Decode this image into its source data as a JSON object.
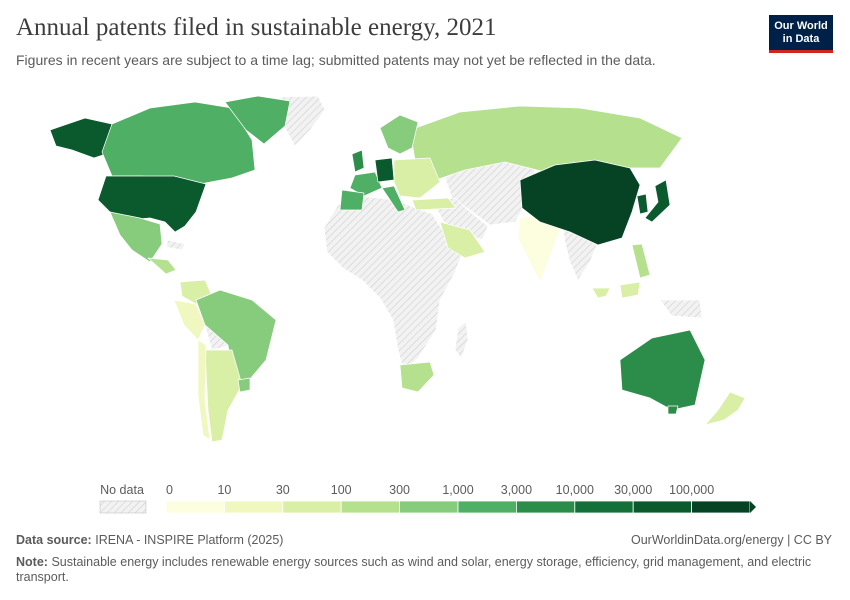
{
  "header": {
    "title": "Annual patents filed in sustainable energy, 2021",
    "subtitle": "Figures in recent years are subject to a time lag; submitted patents may not yet be reflected in the data."
  },
  "logo": {
    "line1": "Our World",
    "line2": "in Data"
  },
  "legend": {
    "no_data_label": "No data",
    "bins": [
      {
        "label": "0",
        "color": "#fdfde0"
      },
      {
        "label": "10",
        "color": "#f0f8c0"
      },
      {
        "label": "30",
        "color": "#d9efa6"
      },
      {
        "label": "100",
        "color": "#b5e08e"
      },
      {
        "label": "300",
        "color": "#86cc7c"
      },
      {
        "label": "1,000",
        "color": "#4faf64"
      },
      {
        "label": "3,000",
        "color": "#2c8c4a"
      },
      {
        "label": "10,000",
        "color": "#137038"
      },
      {
        "label": "30,000",
        "color": "#0a5a2e"
      },
      {
        "label": "100,000",
        "color": "#064325"
      }
    ],
    "end_label": ""
  },
  "map_data": {
    "regions": [
      {
        "name": "Alaska",
        "color_bin": 8
      },
      {
        "name": "Canada",
        "color_bin": 5
      },
      {
        "name": "United States",
        "color_bin": 8
      },
      {
        "name": "Greenland",
        "color_bin": 5
      },
      {
        "name": "Mexico",
        "color_bin": 4
      },
      {
        "name": "Brazil",
        "color_bin": 4
      },
      {
        "name": "Argentina",
        "color_bin": 2
      },
      {
        "name": "Chile",
        "color_bin": 1
      },
      {
        "name": "Peru",
        "color_bin": 1
      },
      {
        "name": "Colombia",
        "color_bin": 2
      },
      {
        "name": "Russia",
        "color_bin": 3
      },
      {
        "name": "China",
        "color_bin": 9
      },
      {
        "name": "Japan",
        "color_bin": 8
      },
      {
        "name": "South Korea",
        "color_bin": 8
      },
      {
        "name": "India",
        "color_bin": 1
      },
      {
        "name": "Australia",
        "color_bin": 6
      },
      {
        "name": "New Zealand",
        "color_bin": 2
      },
      {
        "name": "South Africa",
        "color_bin": 3
      },
      {
        "name": "Saudi Arabia",
        "color_bin": 2
      },
      {
        "name": "Germany",
        "color_bin": 8
      },
      {
        "name": "France",
        "color_bin": 6
      },
      {
        "name": "United Kingdom",
        "color_bin": 6
      },
      {
        "name": "Spain",
        "color_bin": 5
      },
      {
        "name": "Italy",
        "color_bin": 5
      },
      {
        "name": "Nordics",
        "color_bin": 4
      },
      {
        "name": "Eastern Europe",
        "color_bin": 2
      },
      {
        "name": "Turkey",
        "color_bin": 2
      },
      {
        "name": "Philippines",
        "color_bin": 3
      },
      {
        "name": "Indonesia",
        "color_bin": 2
      },
      {
        "name": "Africa (most)",
        "color_bin": -1
      },
      {
        "name": "Central Asia",
        "color_bin": -1
      },
      {
        "name": "Middle East (part)",
        "color_bin": -1
      }
    ]
  },
  "footer": {
    "source_label": "Data source:",
    "source_text": "IRENA - INSPIRE Platform (2025)",
    "credit": "OurWorldinData.org/energy | CC BY",
    "note_label": "Note:",
    "note_text": "Sustainable energy includes renewable energy sources such as wind and solar, energy storage, efficiency, grid management, and electric transport."
  }
}
